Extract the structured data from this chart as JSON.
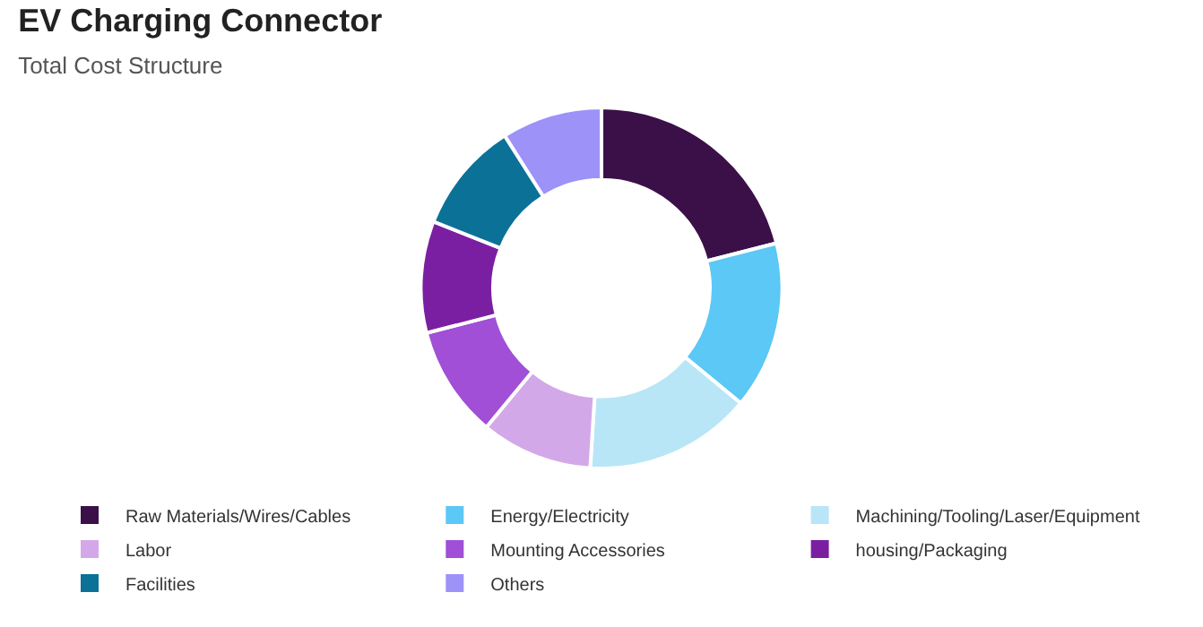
{
  "chart_data": {
    "type": "donut",
    "title": "EV Charging Connector",
    "subtitle": "Total Cost Structure",
    "categories": [
      "Raw Materials/Wires/Cables",
      "Energy/Electricity",
      "Machining/Tooling/Laser/Equipment",
      "Labor",
      "Mounting Accessories",
      "housing/Packaging",
      "Facilities",
      "Others"
    ],
    "values": [
      21,
      15,
      15,
      10,
      10,
      10,
      10,
      9
    ],
    "colors": [
      "#3b1048",
      "#5bc8f5",
      "#b8e6f7",
      "#d3a8e8",
      "#a04fd6",
      "#7a1fa2",
      "#0b7197",
      "#9c92f8"
    ],
    "legend": "bottom"
  }
}
